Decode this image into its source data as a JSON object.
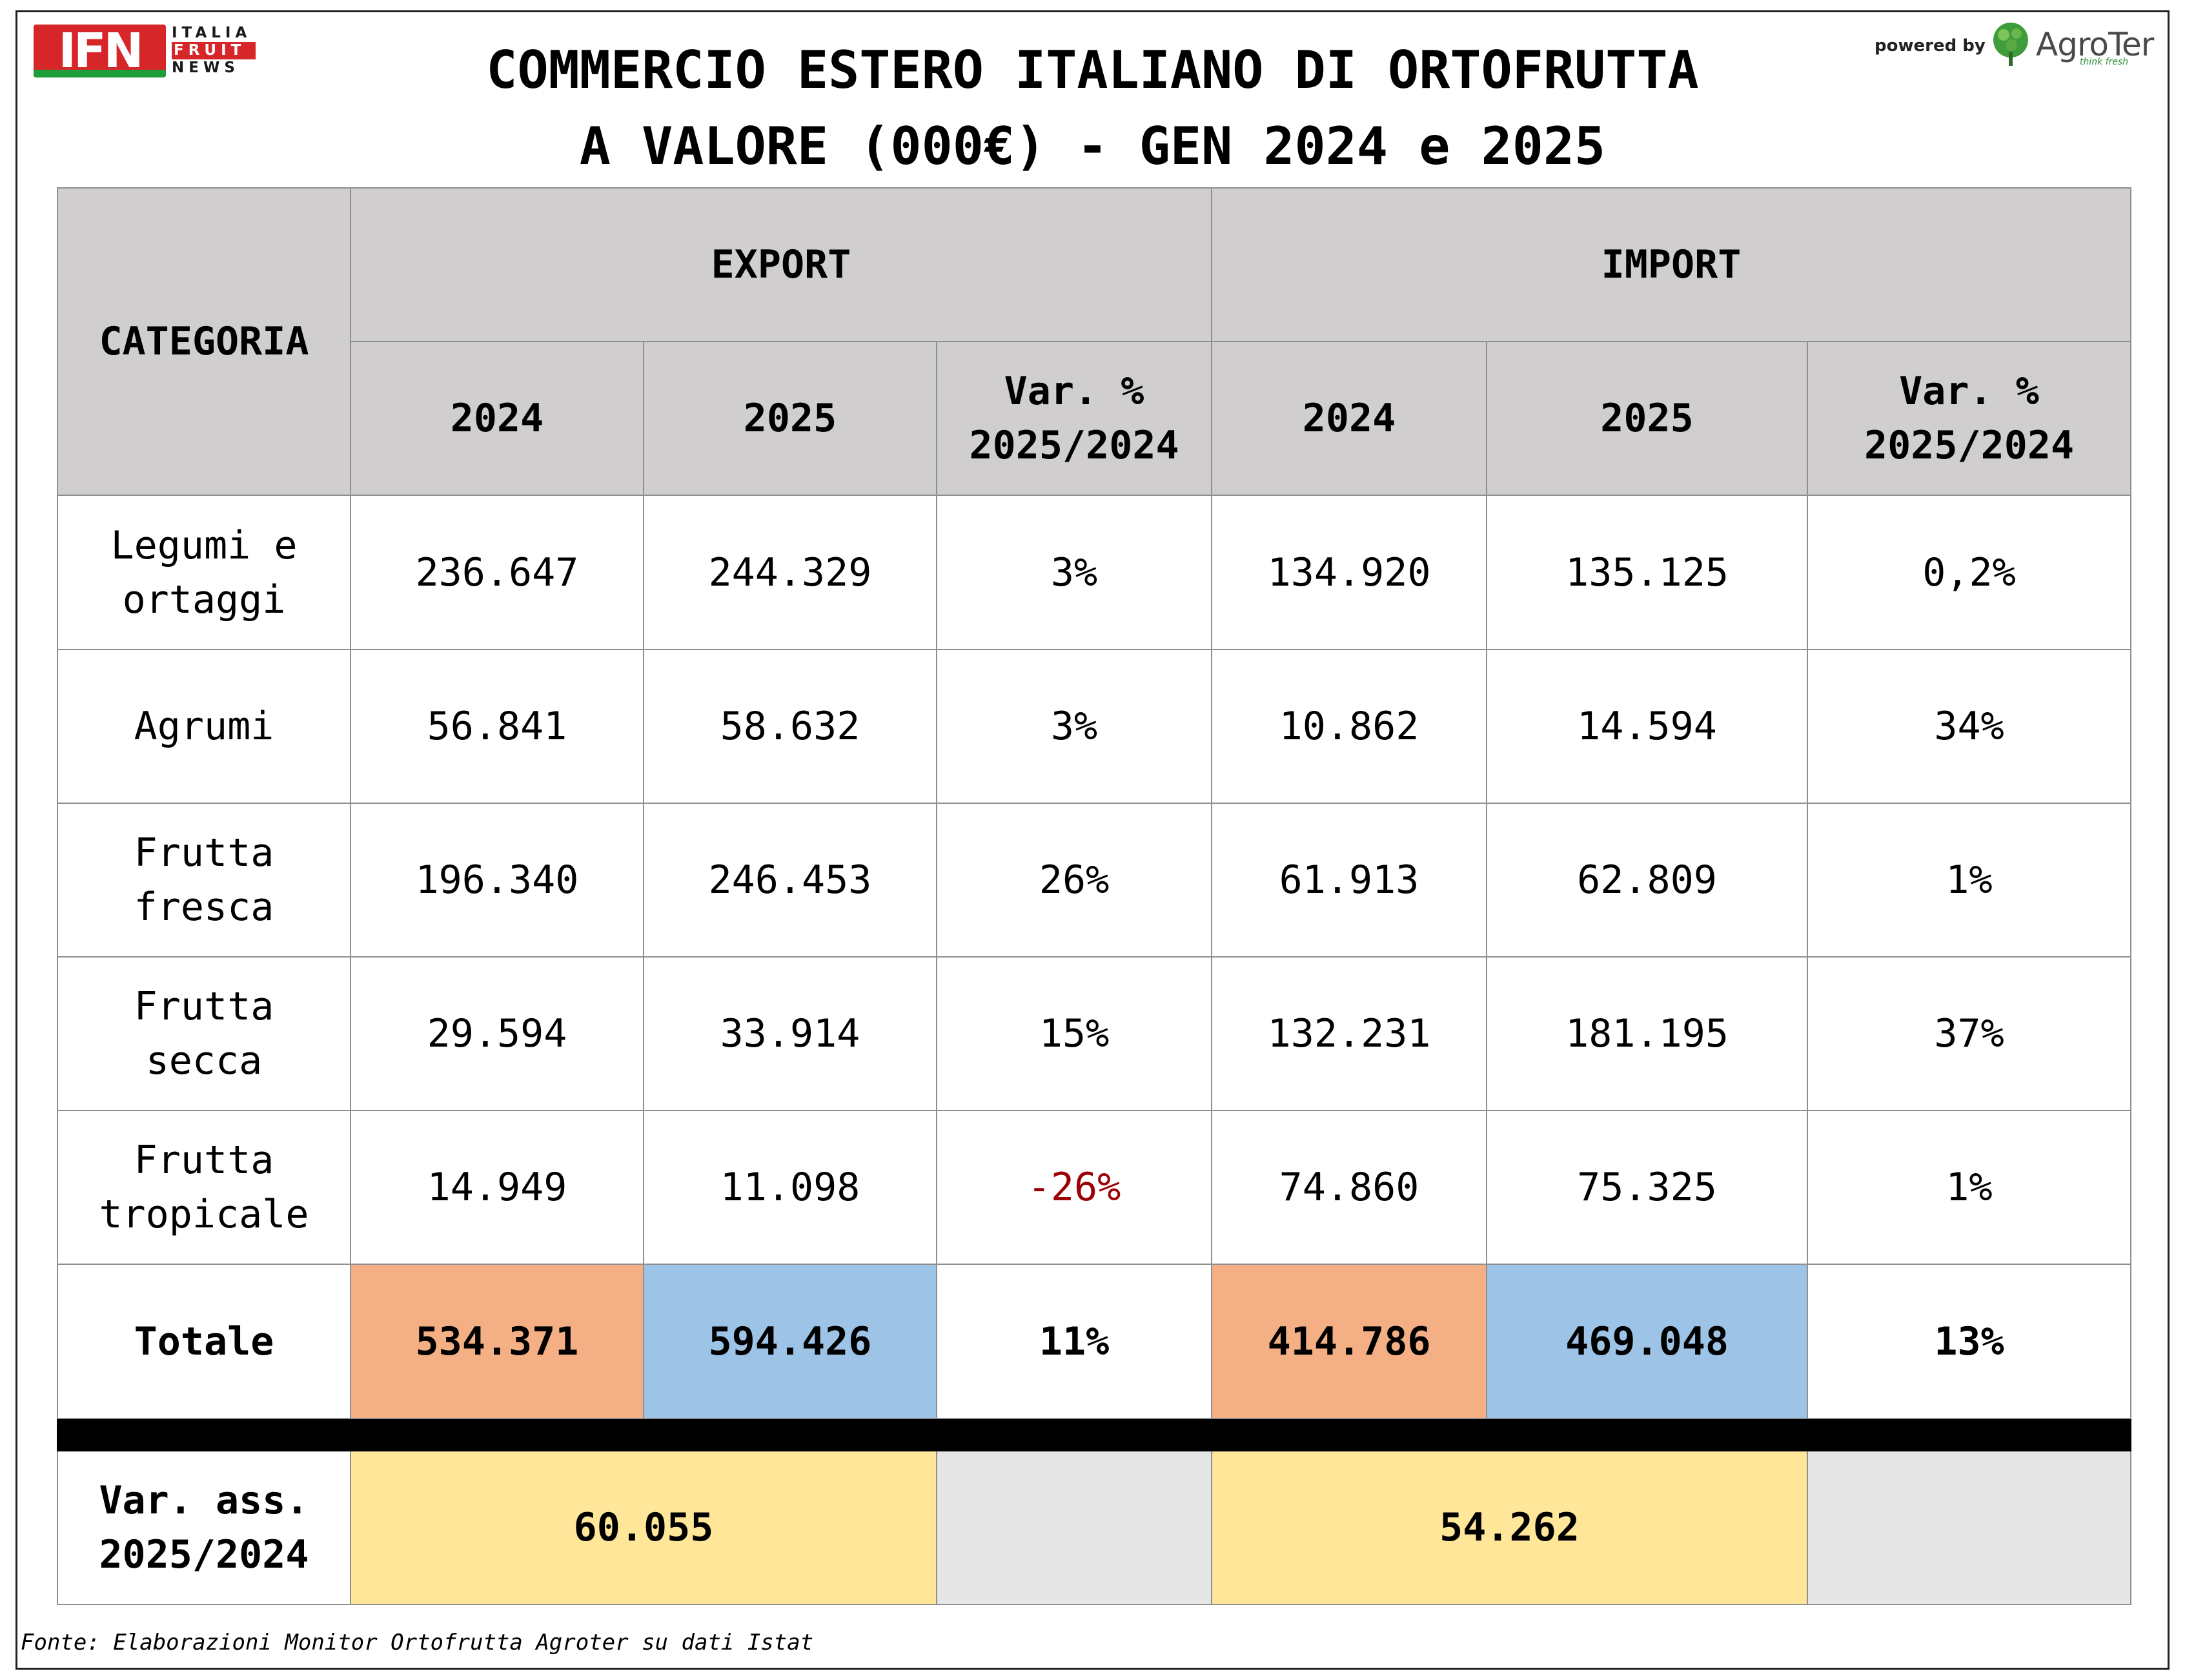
{
  "logo": {
    "left_text": "IFN",
    "words": [
      "ITALIA",
      "FRUIT",
      "NEWS"
    ],
    "powered_by": "powered by",
    "brand": "AgroTer",
    "brand_tagline": "think fresh",
    "brand_icon": "tree-icon"
  },
  "colors": {
    "total_2024": "#f4b084",
    "total_2025": "#9dc3e6",
    "var_ass": "#ffe699",
    "negative": "#9c0006",
    "header_bg": "#d0cecf"
  },
  "chart_data": {
    "type": "table",
    "title_line1": "COMMERCIO ESTERO ITALIANO DI ORTOFRUTTA",
    "title_line2": "A VALORE (000€) - GEN 2024 e 2025",
    "header": {
      "category": "CATEGORIA",
      "export": "EXPORT",
      "import": "IMPORT",
      "y2024": "2024",
      "y2025": "2025",
      "var_line1": "Var. %",
      "var_line2": "2025/2024"
    },
    "rows": [
      {
        "category": [
          "Legumi e",
          "ortaggi"
        ],
        "exp_2024": "236.647",
        "exp_2025": "244.329",
        "exp_var": "3%",
        "imp_2024": "134.920",
        "imp_2025": "135.125",
        "imp_var": "0,2%"
      },
      {
        "category": [
          "Agrumi"
        ],
        "exp_2024": "56.841",
        "exp_2025": "58.632",
        "exp_var": "3%",
        "imp_2024": "10.862",
        "imp_2025": "14.594",
        "imp_var": "34%"
      },
      {
        "category": [
          "Frutta",
          "fresca"
        ],
        "exp_2024": "196.340",
        "exp_2025": "246.453",
        "exp_var": "26%",
        "imp_2024": "61.913",
        "imp_2025": "62.809",
        "imp_var": "1%"
      },
      {
        "category": [
          "Frutta",
          "secca"
        ],
        "exp_2024": "29.594",
        "exp_2025": "33.914",
        "exp_var": "15%",
        "imp_2024": "132.231",
        "imp_2025": "181.195",
        "imp_var": "37%"
      },
      {
        "category": [
          "Frutta",
          "tropicale"
        ],
        "exp_2024": "14.949",
        "exp_2025": "11.098",
        "exp_var": "-26%",
        "imp_2024": "74.860",
        "imp_2025": "75.325",
        "imp_var": "1%"
      }
    ],
    "total": {
      "category": "Totale",
      "exp_2024": "534.371",
      "exp_2025": "594.426",
      "exp_var": "11%",
      "imp_2024": "414.786",
      "imp_2025": "469.048",
      "imp_var": "13%"
    },
    "var_ass": {
      "label_line1": "Var. ass.",
      "label_line2": "2025/2024",
      "export": "60.055",
      "import": "54.262"
    }
  },
  "source": "Fonte: Elaborazioni Monitor Ortofrutta Agroter su dati Istat"
}
